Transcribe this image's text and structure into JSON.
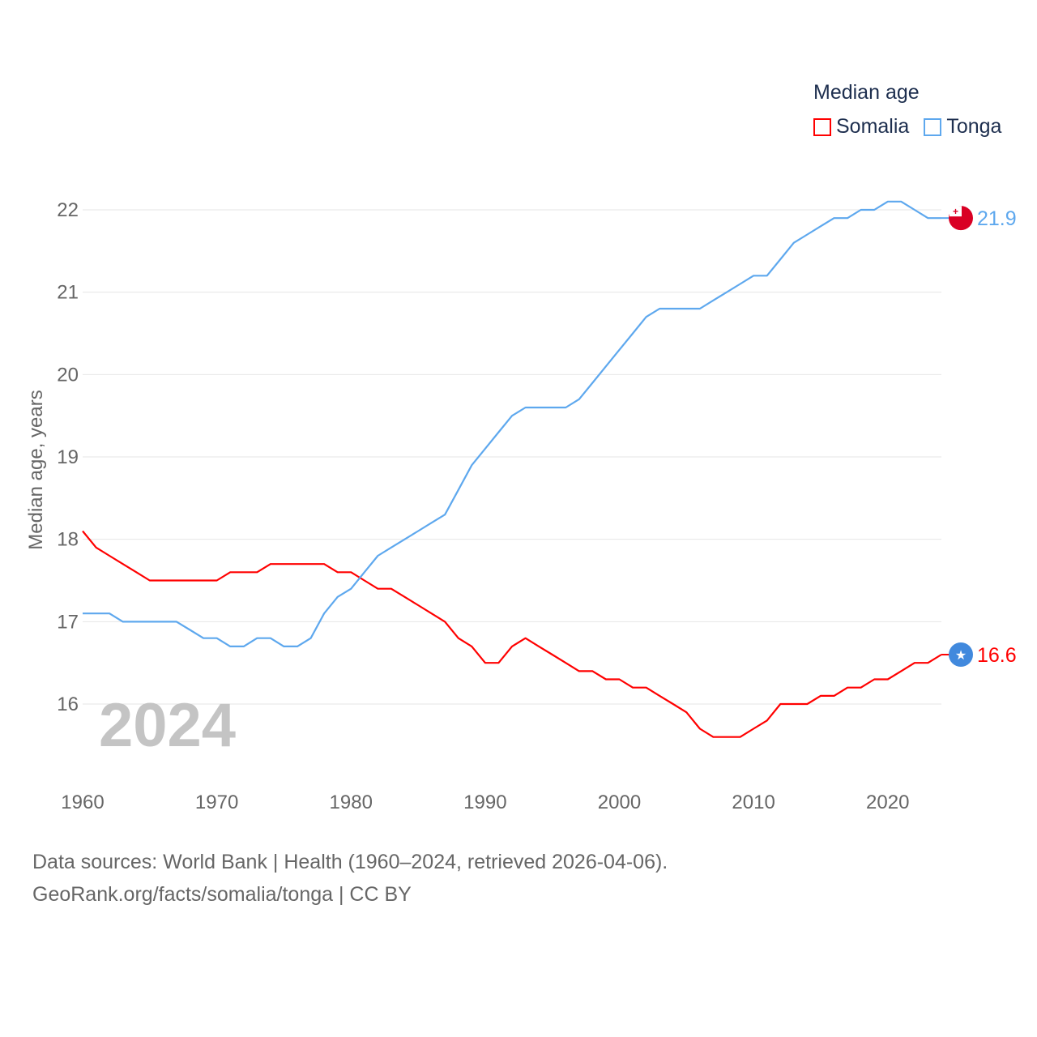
{
  "chart_data": {
    "type": "line",
    "title": "",
    "ylabel": "Median age, years",
    "xlabel": "",
    "xlim": [
      1960,
      2024
    ],
    "ylim": [
      15.1,
      22.4
    ],
    "yticks": [
      16,
      17,
      18,
      19,
      20,
      21,
      22
    ],
    "xticks": [
      1960,
      1970,
      1980,
      1990,
      2000,
      2010,
      2020
    ],
    "grid": true,
    "year_label": "2024",
    "legend": {
      "title": "Median age",
      "placement": "top-right"
    },
    "x": [
      1960,
      1961,
      1962,
      1963,
      1964,
      1965,
      1966,
      1967,
      1968,
      1969,
      1970,
      1971,
      1972,
      1973,
      1974,
      1975,
      1976,
      1977,
      1978,
      1979,
      1980,
      1981,
      1982,
      1983,
      1984,
      1985,
      1986,
      1987,
      1988,
      1989,
      1990,
      1991,
      1992,
      1993,
      1994,
      1995,
      1996,
      1997,
      1998,
      1999,
      2000,
      2001,
      2002,
      2003,
      2004,
      2005,
      2006,
      2007,
      2008,
      2009,
      2010,
      2011,
      2012,
      2013,
      2014,
      2015,
      2016,
      2017,
      2018,
      2019,
      2020,
      2021,
      2022,
      2023,
      2024
    ],
    "series": [
      {
        "name": "Somalia",
        "color": "#ff0000",
        "end_label": "16.6",
        "marker_color": "#4189dd",
        "values": [
          18.1,
          17.9,
          17.8,
          17.7,
          17.6,
          17.5,
          17.5,
          17.5,
          17.5,
          17.5,
          17.5,
          17.6,
          17.6,
          17.6,
          17.7,
          17.7,
          17.7,
          17.7,
          17.7,
          17.6,
          17.6,
          17.5,
          17.4,
          17.4,
          17.3,
          17.2,
          17.1,
          17.0,
          16.8,
          16.7,
          16.5,
          16.5,
          16.7,
          16.8,
          16.7,
          16.6,
          16.5,
          16.4,
          16.4,
          16.3,
          16.3,
          16.2,
          16.2,
          16.1,
          16.0,
          15.9,
          15.7,
          15.6,
          15.6,
          15.6,
          15.7,
          15.8,
          16.0,
          16.0,
          16.0,
          16.1,
          16.1,
          16.2,
          16.2,
          16.3,
          16.3,
          16.4,
          16.5,
          16.5,
          16.6
        ]
      },
      {
        "name": "Tonga",
        "color": "#5ea8ee",
        "end_label": "21.9",
        "marker_color": "#d90024",
        "values": [
          17.1,
          17.1,
          17.1,
          17.0,
          17.0,
          17.0,
          17.0,
          17.0,
          16.9,
          16.8,
          16.8,
          16.7,
          16.7,
          16.8,
          16.8,
          16.7,
          16.7,
          16.8,
          17.1,
          17.3,
          17.4,
          17.6,
          17.8,
          17.9,
          18.0,
          18.1,
          18.2,
          18.3,
          18.6,
          18.9,
          19.1,
          19.3,
          19.5,
          19.6,
          19.6,
          19.6,
          19.6,
          19.7,
          19.9,
          20.1,
          20.3,
          20.5,
          20.7,
          20.8,
          20.8,
          20.8,
          20.8,
          20.9,
          21.0,
          21.1,
          21.2,
          21.2,
          21.4,
          21.6,
          21.7,
          21.8,
          21.9,
          21.9,
          22.0,
          22.0,
          22.1,
          22.1,
          22.0,
          21.9,
          21.9
        ]
      }
    ]
  },
  "footer": {
    "line1": "Data sources: World Bank | Health (1960–2024, retrieved 2026-04-06).",
    "line2": "GeoRank.org/facts/somalia/tonga | CC BY"
  }
}
